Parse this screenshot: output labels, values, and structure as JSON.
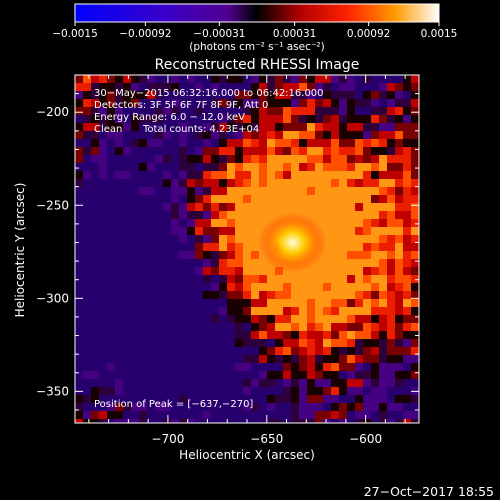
{
  "colorbar": {
    "tick_labels": [
      "−0.0015",
      "−0.00092",
      "−0.00031",
      "0.00031",
      "0.00092",
      "0.0015"
    ],
    "tick_values": [
      -0.0015,
      -0.00092,
      -0.00031,
      0.00031,
      0.00092,
      0.0015
    ],
    "range": [
      -0.0015,
      0.0015
    ],
    "units_label": "(photons cm⁻² s⁻¹ asec⁻²)"
  },
  "annotations": {
    "time_range": "30−May−2015 06:32:16.000 to 06:42:16.000",
    "detectors": "Detectors: 3F 5F 6F 7F 8F 9F, Att 0",
    "energy_range": "Energy Range: 6.0 − 12.0 keV",
    "clean_label": "Clean",
    "total_counts": "Total counts: 4.23E+04",
    "peak_position": "Position of Peak = [−637,−270]"
  },
  "footer": {
    "timestamp": "27−Oct−2017 18:55"
  },
  "chart_data": {
    "type": "heatmap",
    "title": "Reconstructed RHESSI Image",
    "xlabel": "Heliocentric X (arcsec)",
    "ylabel": "Heliocentric Y (arcsec)",
    "xlim": [
      -747,
      -573
    ],
    "ylim": [
      -367,
      -180
    ],
    "x_ticks": [
      -700,
      -650,
      -600
    ],
    "x_tick_labels": [
      "−700",
      "−650",
      "−600"
    ],
    "y_ticks": [
      -200,
      -250,
      -300,
      -350
    ],
    "y_tick_labels": [
      "−200",
      "−250",
      "−300",
      "−350"
    ],
    "peak": {
      "x": -637,
      "y": -270
    },
    "colormap": [
      "#0000ff",
      "#3a00c8",
      "#50008f",
      "#000000",
      "#9a0000",
      "#ff2200",
      "#ff8800",
      "#ffffff"
    ],
    "grid": false
  }
}
